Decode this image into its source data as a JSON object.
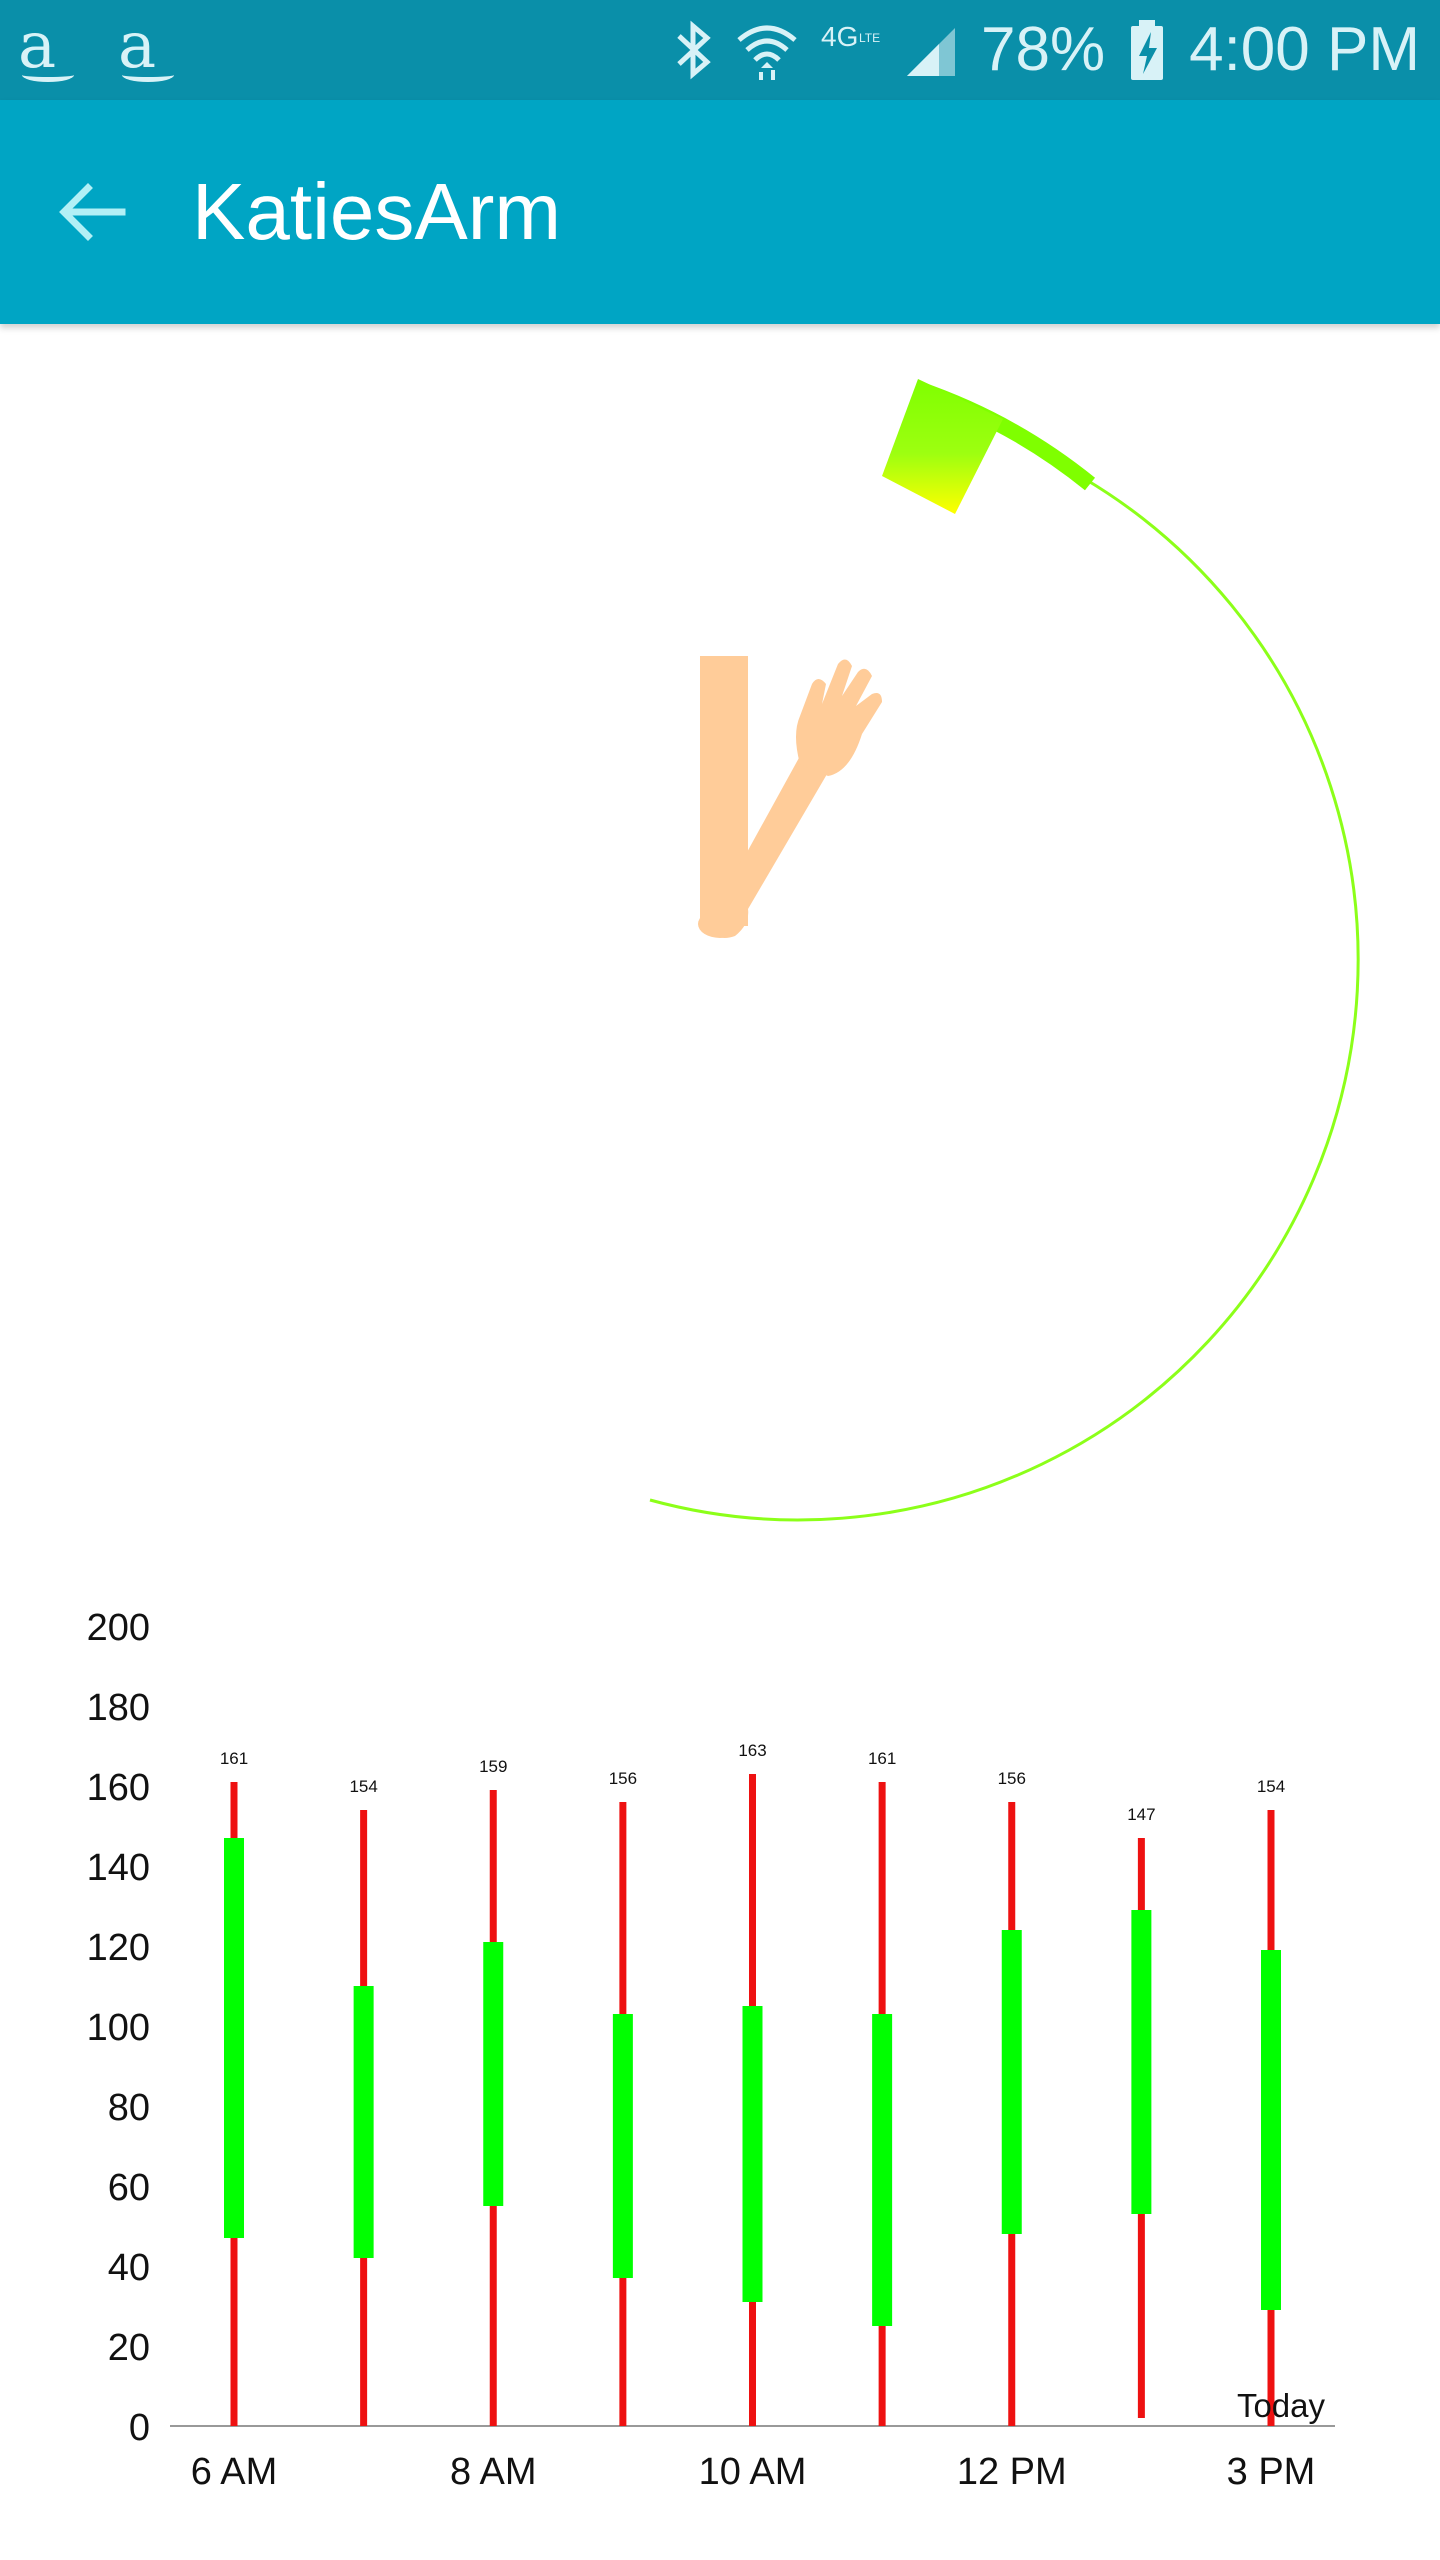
{
  "status_bar": {
    "left_icons": [
      "amazon-icon",
      "amazon-icon"
    ],
    "right_icons": [
      "bluetooth-icon",
      "wifi-icon",
      "lte-4g-icon",
      "signal-icon",
      "battery-charging-icon"
    ],
    "network_label": "4G",
    "battery": "78%",
    "time": "4:00 PM"
  },
  "app_bar": {
    "back_icon": "arrow-left-icon",
    "title": "KatiesArm"
  },
  "visualization": {
    "figure": "arm-raised-icon",
    "gauge_colors": [
      "#7fff00",
      "#ffff00"
    ]
  },
  "chart_data": {
    "type": "candlestick",
    "x_ticks": [
      "6 AM",
      "8 AM",
      "10 AM",
      "12 PM",
      "3 PM"
    ],
    "y_ticks": [
      "0",
      "20",
      "40",
      "60",
      "80",
      "100",
      "120",
      "140",
      "160",
      "180",
      "200"
    ],
    "ylim": [
      0,
      200
    ],
    "annotation": "Today",
    "colors": {
      "range": "#ee1111",
      "body": "#00ff00",
      "axis": "#999999"
    },
    "points": [
      {
        "label": "161",
        "low": 0,
        "high": 161,
        "open": 47,
        "close": 147
      },
      {
        "label": "154",
        "low": 0,
        "high": 154,
        "open": 42,
        "close": 110
      },
      {
        "label": "159",
        "low": 0,
        "high": 159,
        "open": 55,
        "close": 121
      },
      {
        "label": "156",
        "low": 0,
        "high": 156,
        "open": 37,
        "close": 103
      },
      {
        "label": "163",
        "low": 0,
        "high": 163,
        "open": 31,
        "close": 105
      },
      {
        "label": "161",
        "low": 0,
        "high": 161,
        "open": 25,
        "close": 103
      },
      {
        "label": "156",
        "low": 0,
        "high": 156,
        "open": 48,
        "close": 124
      },
      {
        "label": "147",
        "low": 2,
        "high": 147,
        "open": 53,
        "close": 129
      },
      {
        "label": "154",
        "low": 0,
        "high": 154,
        "open": 29,
        "close": 119
      }
    ]
  }
}
